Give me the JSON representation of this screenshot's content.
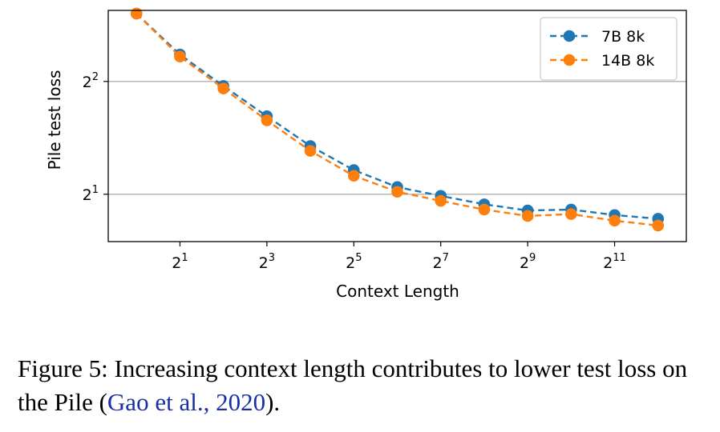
{
  "chart_data": {
    "type": "line",
    "title": "",
    "xlabel": "Context Length",
    "ylabel": "Pile test loss",
    "x_scale": "log2",
    "y_scale": "log2",
    "x_exponents": [
      0,
      1,
      2,
      3,
      4,
      5,
      6,
      7,
      8,
      9,
      10,
      11,
      12
    ],
    "x": [
      1,
      2,
      4,
      8,
      16,
      32,
      64,
      128,
      256,
      512,
      1024,
      2048,
      4096
    ],
    "xlim_log2": [
      -0.65,
      12.65
    ],
    "ylim_log2": [
      0.58,
      2.63
    ],
    "x_ticks": [
      {
        "base": "2",
        "exp": "1",
        "value": 2
      },
      {
        "base": "2",
        "exp": "3",
        "value": 8
      },
      {
        "base": "2",
        "exp": "5",
        "value": 32
      },
      {
        "base": "2",
        "exp": "7",
        "value": 128
      },
      {
        "base": "2",
        "exp": "9",
        "value": 512
      },
      {
        "base": "2",
        "exp": "11",
        "value": 2048
      }
    ],
    "y_ticks": [
      {
        "base": "2",
        "exp": "1",
        "value": 2
      },
      {
        "base": "2",
        "exp": "2",
        "value": 4
      }
    ],
    "grid": "horizontal",
    "legend_position": "top-right",
    "series": [
      {
        "name": "7B 8k",
        "color": "#1f77b4",
        "values": [
          6.07,
          4.72,
          3.89,
          3.23,
          2.69,
          2.32,
          2.09,
          1.98,
          1.88,
          1.81,
          1.82,
          1.76,
          1.72
        ]
      },
      {
        "name": "14B 8k",
        "color": "#ff7f0e",
        "values": [
          6.07,
          4.66,
          3.83,
          3.15,
          2.61,
          2.24,
          2.03,
          1.92,
          1.82,
          1.75,
          1.77,
          1.7,
          1.65
        ]
      }
    ]
  },
  "caption": {
    "text": "Figure 5: Increasing context length contributes to lower test loss on the Pile (",
    "citation": "Gao et al., 2020",
    "end": ")."
  }
}
